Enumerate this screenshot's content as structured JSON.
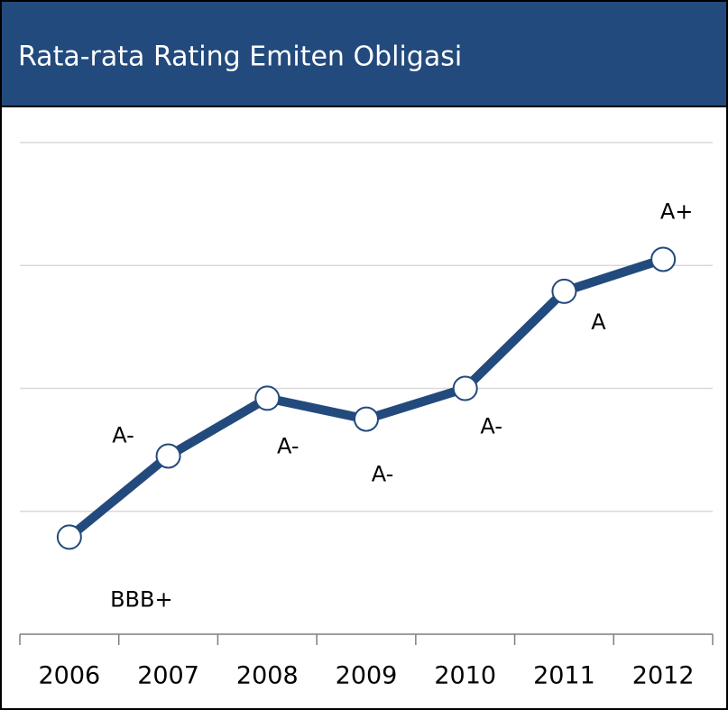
{
  "chart_data": {
    "type": "line",
    "title": "Rata-rata Rating Emiten Obligasi",
    "categories": [
      "2006",
      "2007",
      "2008",
      "2009",
      "2010",
      "2011",
      "2012"
    ],
    "series": [
      {
        "name": null,
        "color": "#234a7c",
        "values": [
          0.79,
          1.45,
          1.92,
          1.75,
          2.0,
          2.79,
          3.05
        ],
        "value_labels": [
          "BBB+",
          "A-",
          "A-",
          "A-",
          "A-",
          "A",
          "A+"
        ]
      }
    ],
    "ylim": [
      0,
      4
    ],
    "yticks": [
      1,
      2,
      3,
      4
    ],
    "grid": true
  }
}
